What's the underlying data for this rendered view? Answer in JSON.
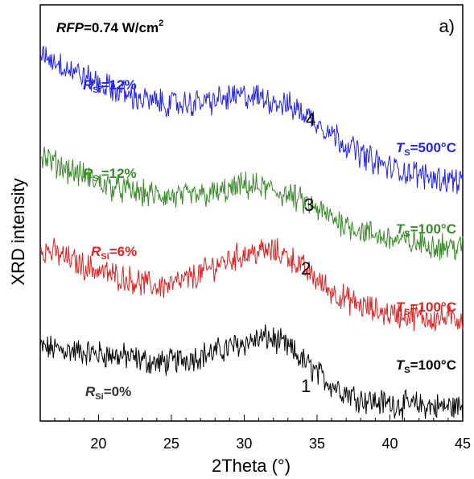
{
  "chart_data": {
    "type": "line",
    "title_parts": {
      "var": "RFP",
      "text": "=0.74 W/cm",
      "sup": "2"
    },
    "panel_label": "a)",
    "xlabel": "2Theta (°)",
    "ylabel": "XRD intensity",
    "xlim": [
      16,
      45
    ],
    "xticks": [
      20,
      25,
      30,
      35,
      40,
      45
    ],
    "yticks_shown": false,
    "legend": "none",
    "series": [
      {
        "number": "1",
        "color": "#000000",
        "r_label": {
          "var": "R",
          "sub": "Si",
          "value": "=0%"
        },
        "t_label": {
          "var": "T",
          "sub": "S",
          "value": "=100°C"
        },
        "x": [
          16,
          17,
          18,
          19,
          20,
          21,
          22,
          23,
          24,
          25,
          26,
          27,
          28,
          29,
          30,
          31,
          31.5,
          32,
          33,
          34,
          35,
          36,
          37,
          38,
          39,
          40,
          41,
          42,
          43,
          44,
          45
        ],
        "y": [
          0.46,
          0.45,
          0.44,
          0.43,
          0.42,
          0.41,
          0.4,
          0.38,
          0.36,
          0.37,
          0.39,
          0.41,
          0.43,
          0.46,
          0.49,
          0.51,
          0.52,
          0.51,
          0.46,
          0.38,
          0.3,
          0.23,
          0.18,
          0.14,
          0.12,
          0.11,
          0.1,
          0.1,
          0.09,
          0.09,
          0.09
        ]
      },
      {
        "number": "2",
        "color": "#dd2222",
        "r_label": {
          "var": "R",
          "sub": "Si",
          "value": "=6%"
        },
        "t_label": {
          "var": "T",
          "sub": "S",
          "value": "=100°C"
        },
        "x": [
          16,
          17,
          18,
          19,
          20,
          21,
          22,
          23,
          24,
          25,
          26,
          27,
          28,
          29,
          30,
          31,
          32,
          33,
          34,
          35,
          36,
          37,
          38,
          39,
          40,
          41,
          42,
          43,
          44,
          45
        ],
        "y": [
          1.08,
          1.05,
          1.01,
          0.97,
          0.94,
          0.91,
          0.89,
          0.86,
          0.84,
          0.85,
          0.88,
          0.92,
          0.97,
          1.01,
          1.04,
          1.06,
          1.06,
          1.03,
          0.96,
          0.88,
          0.81,
          0.76,
          0.72,
          0.69,
          0.67,
          0.66,
          0.65,
          0.64,
          0.64,
          0.64
        ]
      },
      {
        "number": "3",
        "color": "#3a8a2a",
        "r_label": {
          "var": "R",
          "sub": "Si",
          "value": "=12%"
        },
        "t_label": {
          "var": "T",
          "sub": "S",
          "value": "=100°C"
        },
        "x": [
          16,
          17,
          18,
          19,
          20,
          21,
          22,
          23,
          24,
          25,
          26,
          27,
          28,
          29,
          30,
          31,
          32,
          33,
          34,
          35,
          36,
          37,
          38,
          39,
          40,
          41,
          42,
          43,
          44,
          45
        ],
        "y": [
          1.66,
          1.61,
          1.57,
          1.53,
          1.49,
          1.46,
          1.44,
          1.42,
          1.41,
          1.4,
          1.4,
          1.41,
          1.42,
          1.44,
          1.47,
          1.46,
          1.44,
          1.41,
          1.37,
          1.32,
          1.27,
          1.23,
          1.19,
          1.16,
          1.14,
          1.12,
          1.11,
          1.1,
          1.09,
          1.08
        ]
      },
      {
        "number": "4",
        "color": "#2222ee",
        "r_label": {
          "var": "R",
          "sub": "Si",
          "value": "=12%"
        },
        "t_label": {
          "var": "T",
          "sub": "S",
          "value": "=500°C"
        },
        "x": [
          16,
          17,
          18,
          19,
          20,
          21,
          22,
          23,
          24,
          25,
          26,
          27,
          28,
          29,
          30,
          31,
          32,
          33,
          34,
          35,
          36,
          37,
          38,
          39,
          40,
          41,
          42,
          43,
          44,
          45
        ],
        "y": [
          2.3,
          2.25,
          2.2,
          2.15,
          2.11,
          2.07,
          2.04,
          2.01,
          1.99,
          1.98,
          1.98,
          1.99,
          2.0,
          2.02,
          2.03,
          2.02,
          2.0,
          1.97,
          1.93,
          1.87,
          1.8,
          1.73,
          1.67,
          1.62,
          1.58,
          1.56,
          1.54,
          1.52,
          1.51,
          1.5
        ]
      }
    ]
  }
}
